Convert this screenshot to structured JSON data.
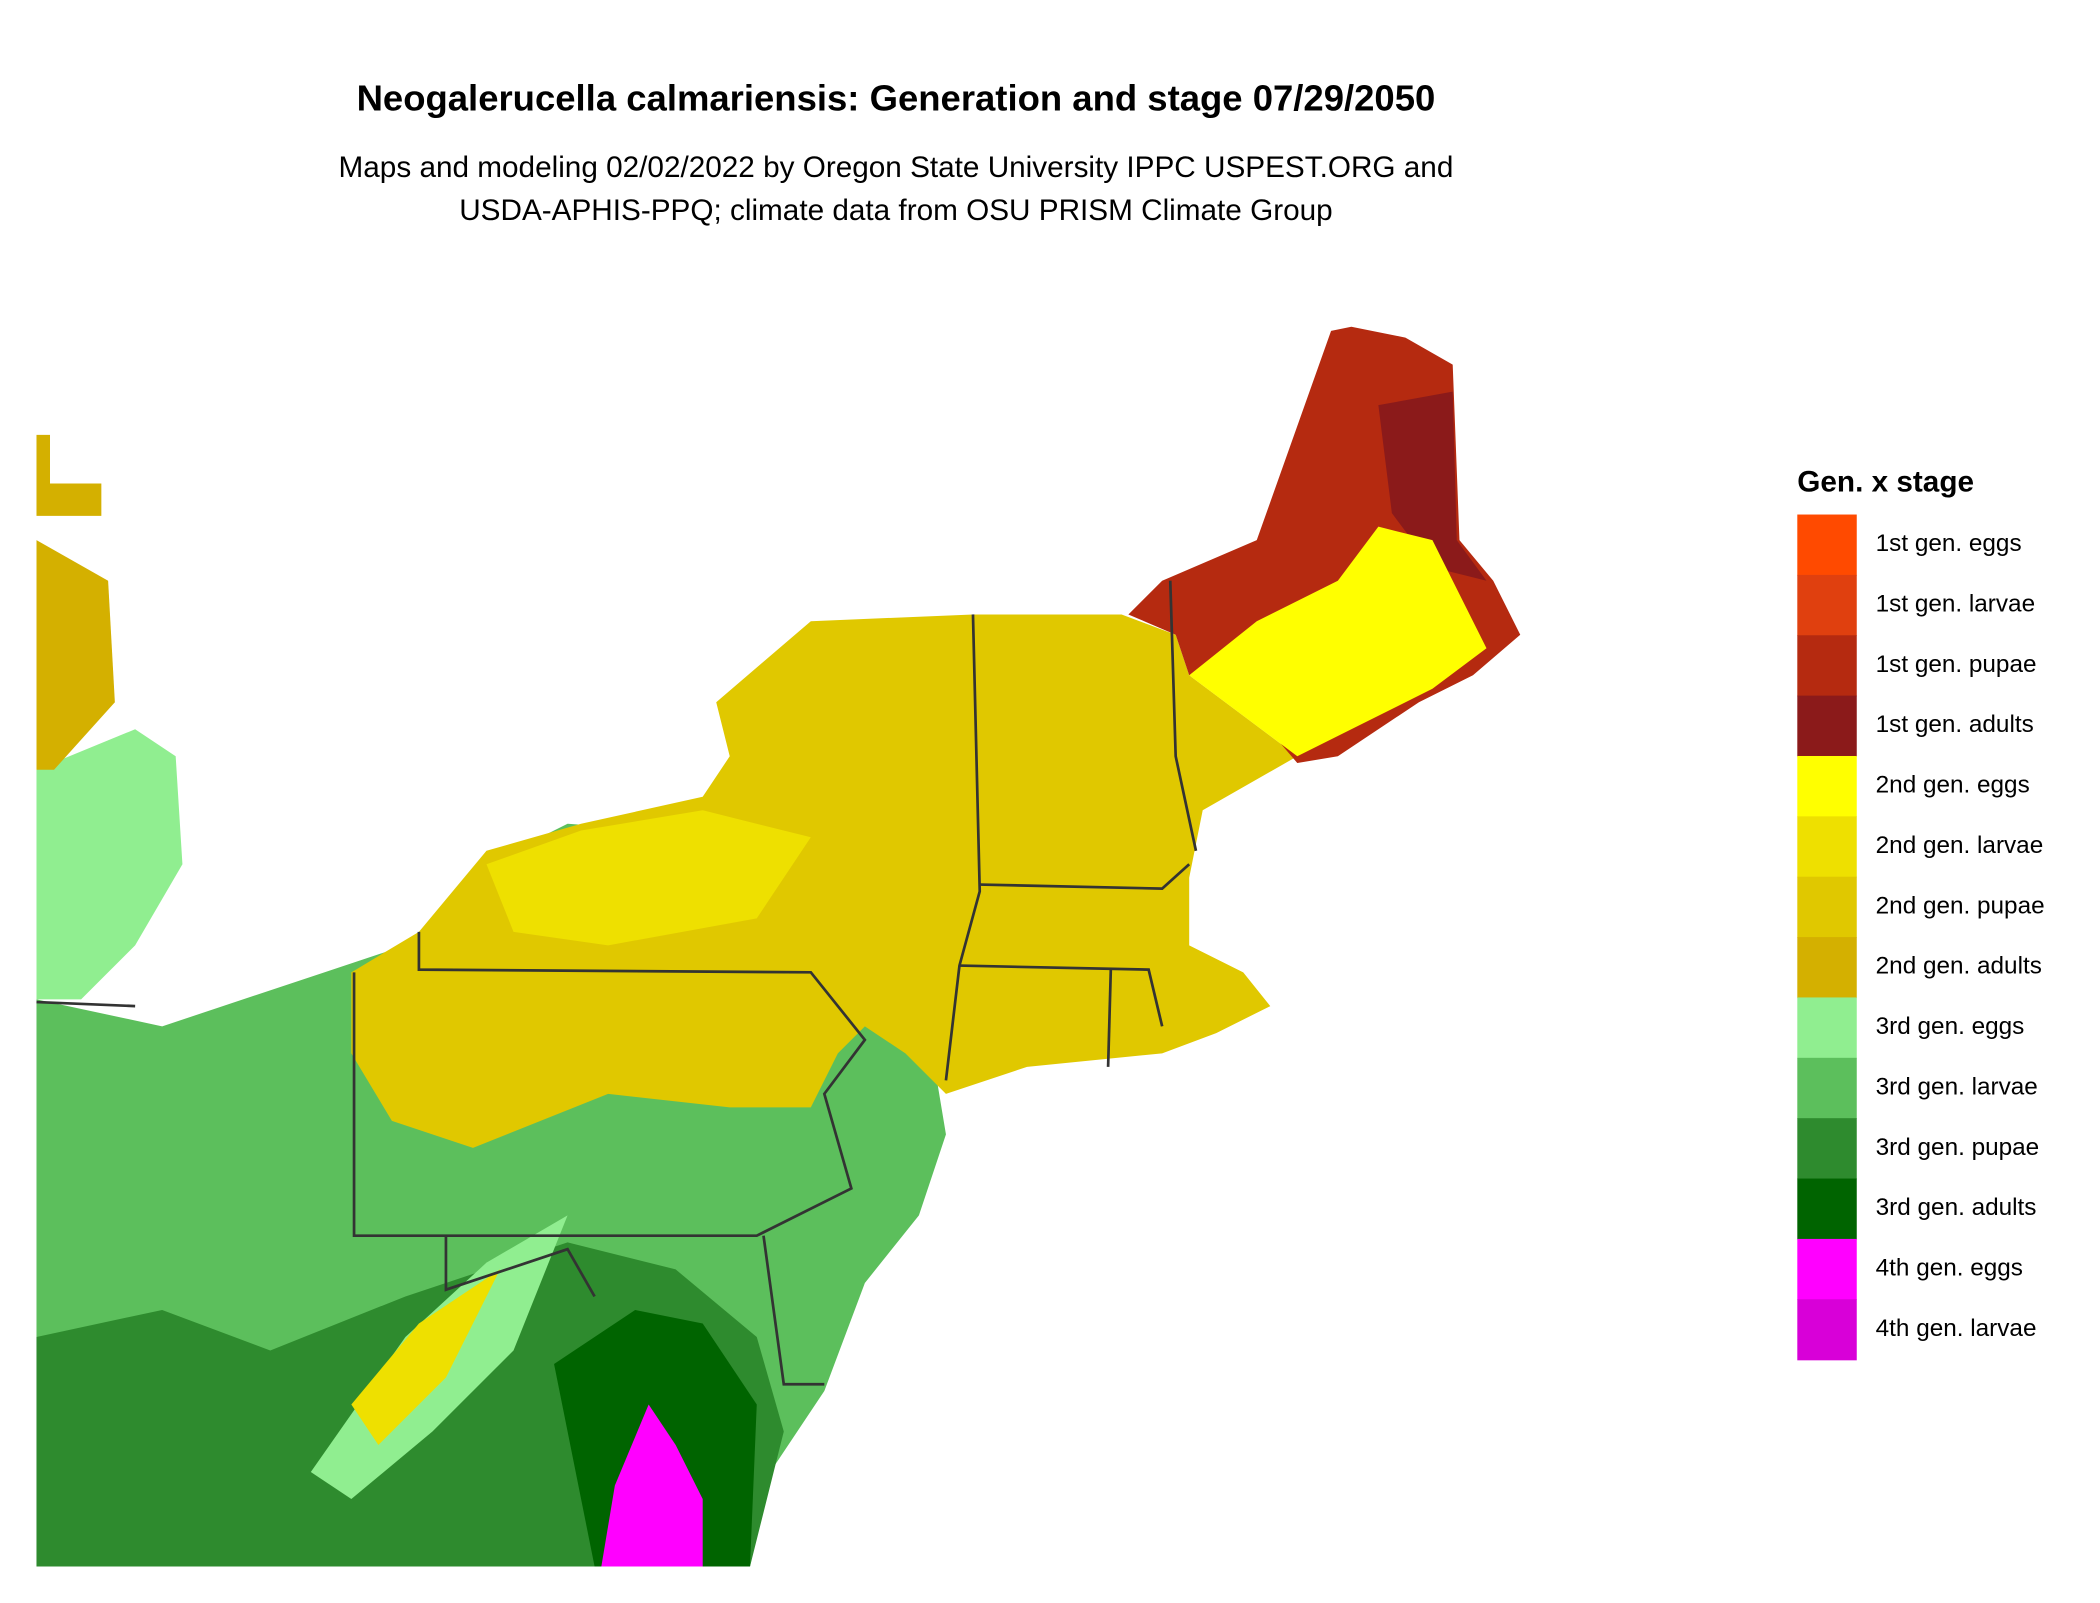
{
  "title": "Neogalerucella calmariensis: Generation and stage 07/29/2050",
  "subtitle": [
    "Maps and modeling 02/02/2022 by Oregon State University IPPC USPEST.ORG and",
    "USDA-APHIS-PPQ; climate data from OSU PRISM Climate Group"
  ],
  "legend": {
    "title": "Gen. x stage",
    "items": [
      {
        "label": "1st gen. eggs",
        "color": "#ff4a00"
      },
      {
        "label": "1st gen. larvae",
        "color": "#e0400f"
      },
      {
        "label": "1st gen. pupae",
        "color": "#b52a10"
      },
      {
        "label": "1st gen. adults",
        "color": "#8b1a1a"
      },
      {
        "label": "2nd gen. eggs",
        "color": "#ffff00"
      },
      {
        "label": "2nd gen. larvae",
        "color": "#eee000"
      },
      {
        "label": "2nd gen. pupae",
        "color": "#e0c800"
      },
      {
        "label": "2nd gen. adults",
        "color": "#d4b000"
      },
      {
        "label": "3rd gen. eggs",
        "color": "#90ee90"
      },
      {
        "label": "3rd gen. larvae",
        "color": "#5cbf5c"
      },
      {
        "label": "3rd gen. pupae",
        "color": "#2e8b2e"
      },
      {
        "label": "3rd gen. adults",
        "color": "#006400"
      },
      {
        "label": "4th gen. eggs",
        "color": "#ff00ff"
      },
      {
        "label": "4th gen. larvae",
        "color": "#d800d8"
      }
    ]
  }
}
